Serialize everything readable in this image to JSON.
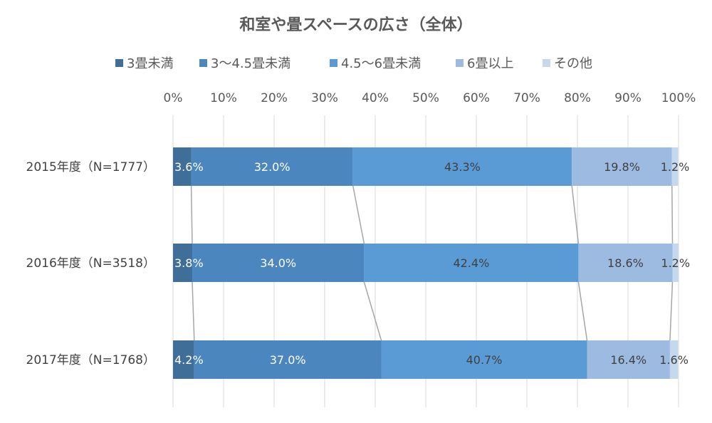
{
  "chart_data": {
    "type": "bar",
    "orientation": "horizontal",
    "stacked": "percent",
    "title": "和室や畳スペースの広さ（全体）",
    "categories": [
      "2015年度（N=1777）",
      "2016年度（N=3518）",
      "2017年度（N=1768）"
    ],
    "series": [
      {
        "name": "3畳未満",
        "color": "#3f6e99",
        "label_color": "#ffffff",
        "values": [
          3.6,
          3.8,
          4.2
        ]
      },
      {
        "name": "3～4.5畳未満",
        "color": "#4c86bf",
        "label_color": "#ffffff",
        "values": [
          32.0,
          34.0,
          37.0
        ]
      },
      {
        "name": "4.5～6畳未満",
        "color": "#5b9bd5",
        "label_color": "#404040",
        "values": [
          43.3,
          42.4,
          40.7
        ]
      },
      {
        "name": "6畳以上",
        "color": "#9dbbe1",
        "label_color": "#404040",
        "values": [
          19.8,
          18.6,
          16.4
        ]
      },
      {
        "name": "その他",
        "color": "#c5d8ee",
        "label_color": "#404040",
        "values": [
          1.2,
          1.2,
          1.6
        ]
      }
    ],
    "xlim": [
      0,
      100
    ],
    "xticks": [
      "0%",
      "10%",
      "20%",
      "30%",
      "40%",
      "50%",
      "60%",
      "70%",
      "80%",
      "90%",
      "100%"
    ],
    "series_lines": true,
    "grid": true,
    "legend_position": "top",
    "axis_position": "top"
  }
}
